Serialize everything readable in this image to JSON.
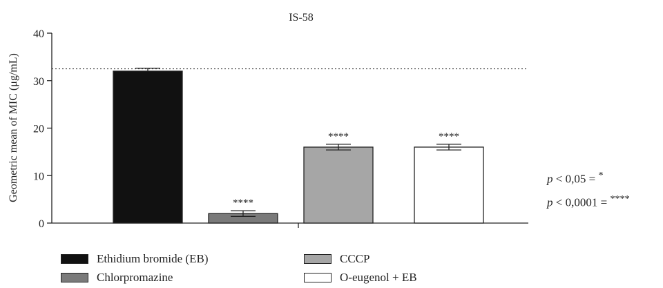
{
  "chart_data": {
    "type": "bar",
    "title": "IS-58",
    "ylabel": "Geometric mean of MIC (μg/mL)",
    "ylim": [
      0,
      40
    ],
    "yticks": [
      0,
      10,
      20,
      30,
      40
    ],
    "reference_line": 32.5,
    "categories": [
      "Ethidium bromide (EB)",
      "Chlorpromazine",
      "CCCP",
      "O-eugenol + EB"
    ],
    "values": [
      32,
      2,
      16,
      16
    ],
    "error_upper": [
      32.6,
      2.6,
      16.6,
      16.6
    ],
    "error_lower": [
      null,
      1.4,
      15.4,
      15.4
    ],
    "significance": [
      "",
      "****",
      "****",
      "****"
    ],
    "colors": [
      "#111111",
      "#7a7a7a",
      "#a6a6a6",
      "#ffffff"
    ]
  },
  "legend": [
    {
      "label": "Ethidium bromide (EB)",
      "color": "#111111"
    },
    {
      "label": "Chlorpromazine",
      "color": "#7a7a7a"
    },
    {
      "label": "CCCP",
      "color": "#a6a6a6"
    },
    {
      "label": "O-eugenol + EB",
      "color": "#ffffff"
    }
  ],
  "pvalues": [
    {
      "p": "p",
      "text": " < 0,05 = ",
      "stars": "*"
    },
    {
      "p": "p",
      "text": " < 0,0001 = ",
      "stars": "****"
    }
  ]
}
